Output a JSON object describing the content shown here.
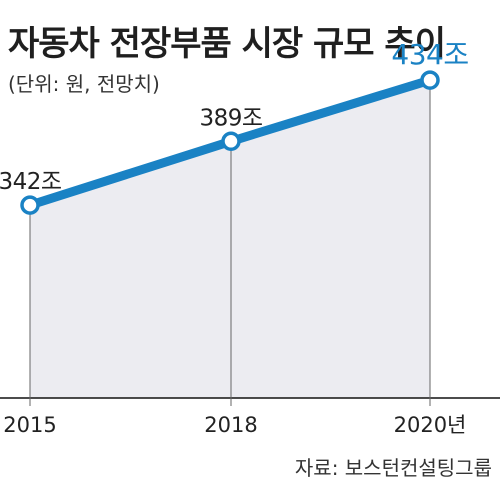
{
  "title": "자동차 전장부품 시장 규모 추이",
  "subtitle": "(단위: 원, 전망치)",
  "source": "자료: 보스턴컨설팅그룹",
  "colors": {
    "line": "#1a82c4",
    "area": "#ececf1",
    "point_fill": "#ffffff",
    "highlight_label": "#1a82c4",
    "axis": "#111111"
  },
  "chart_data": {
    "type": "area",
    "x": [
      "2015",
      "2018",
      "2020"
    ],
    "x_tick_labels": [
      "2015",
      "2018",
      "2020년"
    ],
    "values": [
      342,
      389,
      434
    ],
    "data_labels": [
      "342조",
      "389조",
      "434조"
    ],
    "ylim": [
      200,
      440
    ],
    "grid": false,
    "legend": "none"
  }
}
